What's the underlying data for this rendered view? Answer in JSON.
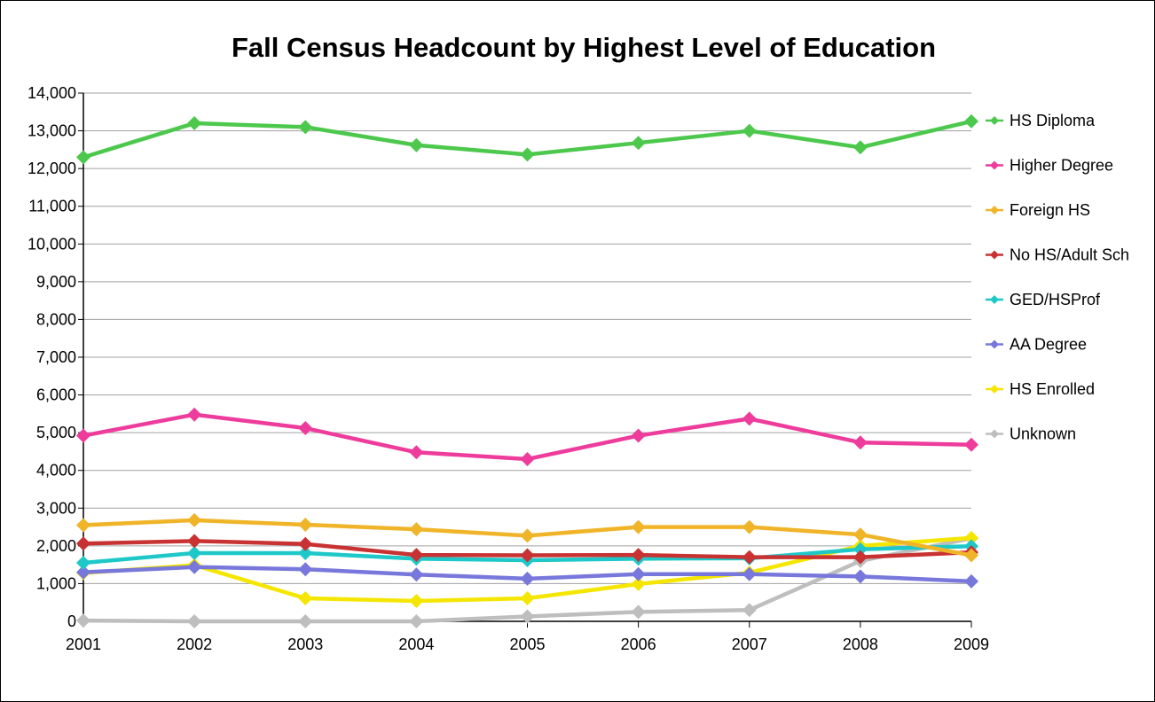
{
  "chart_data": {
    "type": "line",
    "title": "Fall Census Headcount by Highest Level of Education",
    "xlabel": "",
    "ylabel": "",
    "categories": [
      "2001",
      "2002",
      "2003",
      "2004",
      "2005",
      "2006",
      "2007",
      "2008",
      "2009"
    ],
    "ylim": [
      0,
      14000
    ],
    "yticks": [
      0,
      1000,
      2000,
      3000,
      4000,
      5000,
      6000,
      7000,
      8000,
      9000,
      10000,
      11000,
      12000,
      13000,
      14000
    ],
    "ytick_labels": [
      "0",
      "1,000",
      "2,000",
      "3,000",
      "4,000",
      "5,000",
      "6,000",
      "7,000",
      "8,000",
      "9,000",
      "10,000",
      "11,000",
      "12,000",
      "13,000",
      "14,000"
    ],
    "grid": "horizontal",
    "legend_position": "right",
    "series": [
      {
        "name": "HS Diploma",
        "color": "#4CC84C",
        "values": [
          12300,
          13200,
          13100,
          12620,
          12370,
          12680,
          13000,
          12560,
          13250
        ]
      },
      {
        "name": "Higher Degree",
        "color": "#EE3C9C",
        "values": [
          4920,
          5480,
          5120,
          4480,
          4300,
          4920,
          5370,
          4740,
          4680
        ]
      },
      {
        "name": "Foreign HS",
        "color": "#F0B428",
        "values": [
          2550,
          2680,
          2560,
          2440,
          2270,
          2500,
          2500,
          2300,
          1750
        ]
      },
      {
        "name": "No HS/Adult Sch",
        "color": "#C83232",
        "values": [
          2060,
          2130,
          2050,
          1760,
          1750,
          1760,
          1700,
          1700,
          1830
        ]
      },
      {
        "name": "GED/HSProf",
        "color": "#1EC8C8",
        "values": [
          1550,
          1810,
          1810,
          1660,
          1620,
          1660,
          1670,
          1910,
          1990
        ]
      },
      {
        "name": "AA Degree",
        "color": "#7878DC",
        "values": [
          1300,
          1440,
          1380,
          1240,
          1130,
          1250,
          1250,
          1190,
          1060
        ]
      },
      {
        "name": "HS Enrolled",
        "color": "#F5E600",
        "values": [
          1280,
          1490,
          610,
          540,
          610,
          990,
          1290,
          2000,
          2210
        ]
      },
      {
        "name": "Unknown",
        "color": "#BEBEBE",
        "values": [
          20,
          0,
          0,
          0,
          130,
          250,
          300,
          1600,
          2200
        ]
      }
    ]
  }
}
